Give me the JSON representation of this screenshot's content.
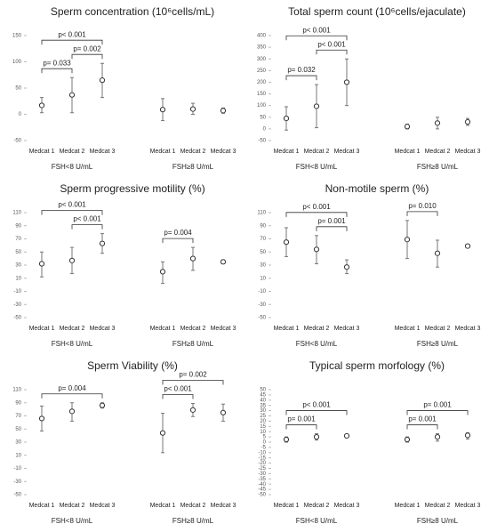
{
  "chart_data": [
    {
      "type": "errorbar",
      "title": "Sperm concentration (10⁶cells/mL)",
      "categories": [
        "Medcat 1",
        "Medcat 2",
        "Medcat 3",
        "Medcat 1",
        "Medcat 2",
        "Medcat 3"
      ],
      "groups": [
        "FSH<8 U/mL",
        "FSH≥8 U/mL"
      ],
      "values": [
        17,
        37,
        65,
        9,
        10,
        7
      ],
      "low": [
        3,
        3,
        32,
        -12,
        0,
        2
      ],
      "high": [
        32,
        70,
        97,
        30,
        21,
        12
      ],
      "ylim": [
        -50,
        150
      ],
      "yticks": [
        -50,
        0,
        50,
        100,
        150
      ],
      "comparisons": [
        {
          "label": "p= 0.033",
          "between": [
            0,
            1
          ]
        },
        {
          "label": "p= 0.002",
          "between": [
            1,
            2
          ]
        },
        {
          "label": "p< 0.001",
          "between": [
            0,
            2
          ]
        }
      ]
    },
    {
      "type": "errorbar",
      "title": "Total sperm count (10⁶cells/ejaculate)",
      "categories": [
        "Medcat 1",
        "Medcat 2",
        "Medcat 3",
        "Medcat 1",
        "Medcat 2",
        "Medcat 3"
      ],
      "groups": [
        "FSH<8 U/mL",
        "FSH≥8 U/mL"
      ],
      "values": [
        45,
        97,
        200,
        10,
        25,
        30
      ],
      "low": [
        -5,
        5,
        100,
        0,
        0,
        15
      ],
      "high": [
        95,
        190,
        300,
        20,
        50,
        45
      ],
      "ylim": [
        -50,
        400
      ],
      "yticks": [
        -50,
        0,
        50,
        100,
        150,
        200,
        250,
        300,
        350,
        400
      ],
      "comparisons": [
        {
          "label": "p= 0.032",
          "between": [
            0,
            1
          ]
        },
        {
          "label": "p< 0.001",
          "between": [
            1,
            2
          ]
        },
        {
          "label": "p< 0.001",
          "between": [
            0,
            2
          ]
        }
      ]
    },
    {
      "type": "errorbar",
      "title": "Sperm progressive motility (%)",
      "categories": [
        "Medcat 1",
        "Medcat 2",
        "Medcat 3",
        "Medcat 1",
        "Medcat 2",
        "Medcat 3"
      ],
      "groups": [
        "FSH<8 U/mL",
        "FSH≥8 U/mL"
      ],
      "values": [
        32,
        37,
        63,
        20,
        40,
        35
      ],
      "low": [
        12,
        17,
        48,
        2,
        22,
        32
      ],
      "high": [
        50,
        57,
        78,
        35,
        57,
        38
      ],
      "ylim": [
        -50,
        110
      ],
      "yticks": [
        -50,
        -30,
        -10,
        10,
        30,
        50,
        70,
        90,
        110
      ],
      "comparisons": [
        {
          "label": "p< 0.001",
          "between": [
            1,
            2
          ]
        },
        {
          "label": "p< 0.001",
          "between": [
            0,
            2
          ]
        },
        {
          "label": "p= 0.004",
          "between": [
            3,
            4
          ]
        }
      ]
    },
    {
      "type": "errorbar",
      "title": "Non-motile sperm (%)",
      "categories": [
        "Medcat 1",
        "Medcat 2",
        "Medcat 3",
        "Medcat 1",
        "Medcat 2",
        "Medcat 3"
      ],
      "groups": [
        "FSH<8 U/mL",
        "FSH≥8 U/mL"
      ],
      "values": [
        65,
        54,
        27,
        69,
        48,
        59
      ],
      "low": [
        43,
        32,
        17,
        40,
        27,
        58
      ],
      "high": [
        87,
        75,
        38,
        98,
        68,
        60
      ],
      "ylim": [
        -50,
        110
      ],
      "yticks": [
        -50,
        -30,
        -10,
        10,
        30,
        50,
        70,
        90,
        110
      ],
      "comparisons": [
        {
          "label": "p= 0.001",
          "between": [
            1,
            2
          ]
        },
        {
          "label": "p< 0.001",
          "between": [
            0,
            2
          ]
        },
        {
          "label": "p= 0.010",
          "between": [
            3,
            4
          ]
        }
      ]
    },
    {
      "type": "errorbar",
      "title": "Sperm Viability (%)",
      "categories": [
        "Medcat 1",
        "Medcat 2",
        "Medcat 3",
        "Medcat 1",
        "Medcat 2",
        "Medcat 3"
      ],
      "groups": [
        "FSH<8 U/mL",
        "FSH≥8 U/mL"
      ],
      "values": [
        66,
        77,
        86,
        44,
        79,
        75
      ],
      "low": [
        47,
        62,
        82,
        14,
        69,
        62
      ],
      "high": [
        85,
        90,
        90,
        74,
        89,
        88
      ],
      "ylim": [
        -50,
        110
      ],
      "yticks": [
        -50,
        -30,
        -10,
        10,
        30,
        50,
        70,
        90,
        110
      ],
      "comparisons": [
        {
          "label": "p= 0.004",
          "between": [
            0,
            2
          ]
        },
        {
          "label": "p< 0.001",
          "between": [
            3,
            4
          ]
        },
        {
          "label": "p= 0.002",
          "between": [
            3,
            5
          ]
        }
      ]
    },
    {
      "type": "errorbar",
      "title": "Typical sperm morfology (%)",
      "categories": [
        "Medcat 1",
        "Medcat 2",
        "Medcat 3",
        "Medcat 1",
        "Medcat 2",
        "Medcat 3"
      ],
      "groups": [
        "FSH<8 U/mL",
        "FSH≥8 U/mL"
      ],
      "values": [
        2.5,
        5,
        6,
        2.5,
        5,
        6.5
      ],
      "low": [
        0,
        2,
        5,
        0,
        1,
        3
      ],
      "high": [
        5,
        8,
        7,
        5,
        8,
        9
      ],
      "ylim": [
        -50,
        50
      ],
      "yticks": [
        -50,
        -45,
        -40,
        -35,
        -30,
        -25,
        -20,
        -15,
        -10,
        -5,
        0,
        5,
        10,
        15,
        20,
        25,
        30,
        35,
        40,
        45,
        50
      ],
      "comparisons": [
        {
          "label": "p= 0.001",
          "between": [
            0,
            1
          ]
        },
        {
          "label": "p< 0.001",
          "between": [
            0,
            2
          ]
        },
        {
          "label": "p= 0.001",
          "between": [
            3,
            4
          ]
        },
        {
          "label": "p= 0.001",
          "between": [
            3,
            5
          ]
        }
      ]
    }
  ]
}
